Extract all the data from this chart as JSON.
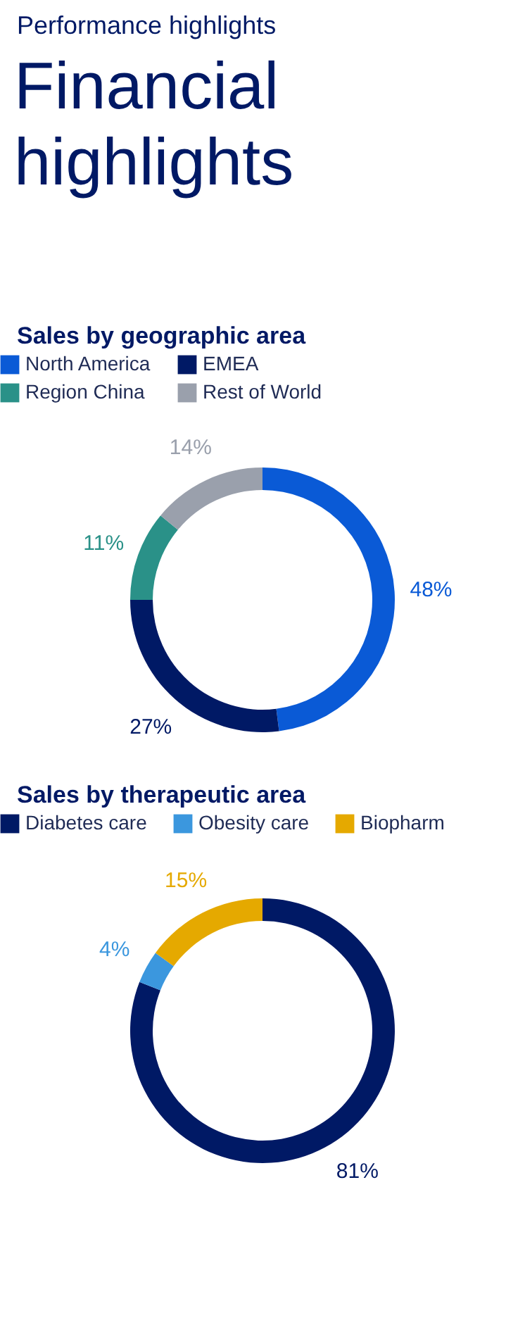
{
  "chart_data": [
    {
      "type": "donut",
      "annotations": [
        "Performance highlights",
        "Financial highlights"
      ],
      "title": "Sales by geographic area",
      "legend": "top left",
      "categories": [
        "North America",
        "EMEA",
        "Region China",
        "Rest of World"
      ],
      "values": [
        48,
        27,
        11,
        14
      ],
      "colors": [
        "#0a5ad6",
        "#001965",
        "#2a9188",
        "#9aa0ac"
      ],
      "value_labels": [
        "48%",
        "27%",
        "11%",
        "14%"
      ]
    },
    {
      "type": "donut",
      "title": "Sales by therapeutic area",
      "legend": "top left",
      "categories": [
        "Diabetes care",
        "Obesity care",
        "Biopharm"
      ],
      "values": [
        81,
        4,
        15
      ],
      "colors": [
        "#001965",
        "#3b97de",
        "#e5a900"
      ],
      "value_labels": [
        "81%",
        "4%",
        "15%"
      ]
    }
  ]
}
